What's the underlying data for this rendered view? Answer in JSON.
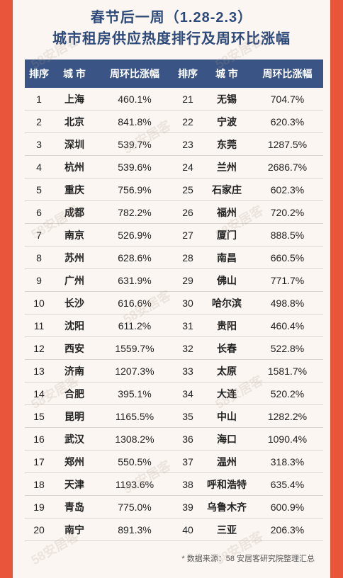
{
  "title": {
    "line1": "春节后一周（1.28-2.3）",
    "line2": "城市租房供应热度排行及周环比涨幅"
  },
  "table": {
    "headers": {
      "rank": "排序",
      "city": "城 市",
      "pct": "周环比涨幅",
      "rank2": "排序",
      "city2": "城 市",
      "pct2": "周环比涨幅"
    },
    "rows": [
      {
        "r1": "1",
        "c1": "上海",
        "p1": "460.1%",
        "r2": "21",
        "c2": "无锡",
        "p2": "704.7%"
      },
      {
        "r1": "2",
        "c1": "北京",
        "p1": "841.8%",
        "r2": "22",
        "c2": "宁波",
        "p2": "620.3%"
      },
      {
        "r1": "3",
        "c1": "深圳",
        "p1": "539.7%",
        "r2": "23",
        "c2": "东莞",
        "p2": "1287.5%"
      },
      {
        "r1": "4",
        "c1": "杭州",
        "p1": "539.6%",
        "r2": "24",
        "c2": "兰州",
        "p2": "2686.7%"
      },
      {
        "r1": "5",
        "c1": "重庆",
        "p1": "756.9%",
        "r2": "25",
        "c2": "石家庄",
        "p2": "602.3%"
      },
      {
        "r1": "6",
        "c1": "成都",
        "p1": "782.2%",
        "r2": "26",
        "c2": "福州",
        "p2": "720.2%"
      },
      {
        "r1": "7",
        "c1": "南京",
        "p1": "526.9%",
        "r2": "27",
        "c2": "厦门",
        "p2": "888.5%"
      },
      {
        "r1": "8",
        "c1": "苏州",
        "p1": "628.6%",
        "r2": "28",
        "c2": "南昌",
        "p2": "660.5%"
      },
      {
        "r1": "9",
        "c1": "广州",
        "p1": "631.9%",
        "r2": "29",
        "c2": "佛山",
        "p2": "771.7%"
      },
      {
        "r1": "10",
        "c1": "长沙",
        "p1": "616.6%",
        "r2": "30",
        "c2": "哈尔滨",
        "p2": "498.8%"
      },
      {
        "r1": "11",
        "c1": "沈阳",
        "p1": "611.2%",
        "r2": "31",
        "c2": "贵阳",
        "p2": "460.4%"
      },
      {
        "r1": "12",
        "c1": "西安",
        "p1": "1559.7%",
        "r2": "32",
        "c2": "长春",
        "p2": "522.8%"
      },
      {
        "r1": "13",
        "c1": "济南",
        "p1": "1207.3%",
        "r2": "33",
        "c2": "太原",
        "p2": "1581.7%"
      },
      {
        "r1": "14",
        "c1": "合肥",
        "p1": "395.1%",
        "r2": "34",
        "c2": "大连",
        "p2": "520.2%"
      },
      {
        "r1": "15",
        "c1": "昆明",
        "p1": "1165.5%",
        "r2": "35",
        "c2": "中山",
        "p2": "1282.2%"
      },
      {
        "r1": "16",
        "c1": "武汉",
        "p1": "1308.2%",
        "r2": "36",
        "c2": "海口",
        "p2": "1090.4%"
      },
      {
        "r1": "17",
        "c1": "郑州",
        "p1": "550.5%",
        "r2": "37",
        "c2": "温州",
        "p2": "318.3%"
      },
      {
        "r1": "18",
        "c1": "天津",
        "p1": "1193.6%",
        "r2": "38",
        "c2": "呼和浩特",
        "p2": "635.4%"
      },
      {
        "r1": "19",
        "c1": "青岛",
        "p1": "775.0%",
        "r2": "39",
        "c2": "乌鲁木齐",
        "p2": "600.9%"
      },
      {
        "r1": "20",
        "c1": "南宁",
        "p1": "891.3%",
        "r2": "40",
        "c2": "三亚",
        "p2": "206.3%"
      }
    ]
  },
  "footnote": "* 数据来源：58 安居客研究院整理汇总",
  "watermark_text": "58安居客",
  "colors": {
    "background": "#e8553a",
    "header": "#3a5585",
    "title": "#2d4a7a"
  }
}
